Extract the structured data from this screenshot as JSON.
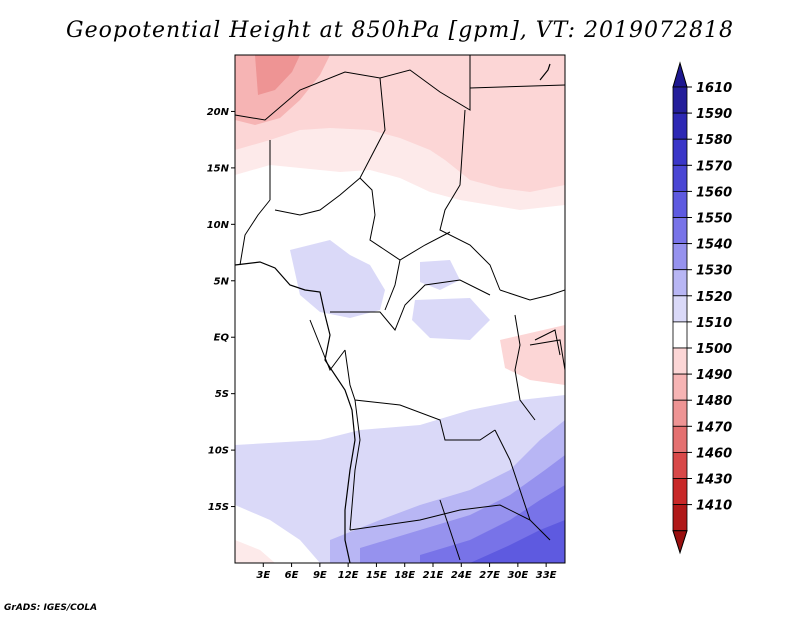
{
  "title": "Geopotential Height at 850hPa [gpm], VT: 2019072818",
  "footer": "GrADS: IGES/COLA",
  "map": {
    "lat_ticks": [
      {
        "label": "20N",
        "lat": 20
      },
      {
        "label": "15N",
        "lat": 15
      },
      {
        "label": "10N",
        "lat": 10
      },
      {
        "label": "5N",
        "lat": 5
      },
      {
        "label": "EQ",
        "lat": 0
      },
      {
        "label": "5S",
        "lat": -5
      },
      {
        "label": "10S",
        "lat": -10
      },
      {
        "label": "15S",
        "lat": -15
      }
    ],
    "lon_ticks": [
      {
        "label": "3E",
        "lon": 3
      },
      {
        "label": "6E",
        "lon": 6
      },
      {
        "label": "9E",
        "lon": 9
      },
      {
        "label": "12E",
        "lon": 12
      },
      {
        "label": "15E",
        "lon": 15
      },
      {
        "label": "18E",
        "lon": 18
      },
      {
        "label": "21E",
        "lon": 21
      },
      {
        "label": "24E",
        "lon": 24
      },
      {
        "label": "27E",
        "lon": 27
      },
      {
        "label": "30E",
        "lon": 30
      },
      {
        "label": "33E",
        "lon": 33
      }
    ],
    "lon_range": [
      0,
      35
    ],
    "lat_range": [
      -20,
      25
    ]
  },
  "colorbar": {
    "levels": [
      "1610",
      "1590",
      "1580",
      "1570",
      "1560",
      "1550",
      "1540",
      "1530",
      "1520",
      "1510",
      "1500",
      "1490",
      "1480",
      "1470",
      "1460",
      "1430",
      "1410"
    ],
    "colors": [
      "#241e9a",
      "#2d28b4",
      "#3a36c8",
      "#4a46d4",
      "#5e5ae0",
      "#7873e8",
      "#9692ee",
      "#b8b6f4",
      "#dad9f8",
      "#ffffff",
      "#fcd6d6",
      "#f6b4b4",
      "#ee9494",
      "#e47070",
      "#d84848",
      "#c82828",
      "#b01818"
    ],
    "top_color": "#1e1890",
    "bottom_color": "#9a1010"
  }
}
